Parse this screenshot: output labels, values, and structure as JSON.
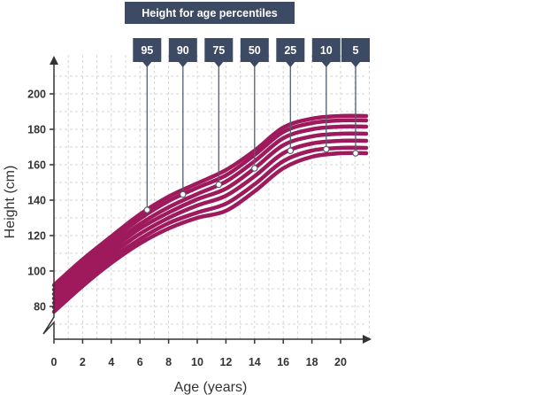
{
  "chart_data": {
    "type": "line",
    "title": "Height for age percentiles",
    "xlabel": "Age (years)",
    "ylabel": "Height (cm)",
    "xlim": [
      0,
      22
    ],
    "ylim": [
      70,
      215
    ],
    "x_ticks": [
      0,
      2,
      4,
      6,
      8,
      10,
      12,
      14,
      16,
      18,
      20
    ],
    "y_ticks": [
      80,
      100,
      120,
      140,
      160,
      180,
      200
    ],
    "grid": true,
    "y_axis_break": true,
    "x": [
      0,
      2,
      4,
      6,
      8,
      10,
      12,
      14,
      16,
      18,
      20,
      22
    ],
    "series": [
      {
        "name": "95",
        "label_age": 6.5,
        "values": [
          92,
          106.5,
          119.5,
          132,
          142,
          149.5,
          157,
          168,
          181,
          186,
          187.5,
          187.5
        ]
      },
      {
        "name": "90",
        "label_age": 9,
        "values": [
          89.5,
          104,
          117,
          129.5,
          139.5,
          147,
          154,
          165.5,
          178.5,
          183.5,
          185,
          185
        ]
      },
      {
        "name": "75",
        "label_age": 11.5,
        "values": [
          87,
          101.5,
          114.5,
          126.5,
          136,
          143.5,
          150.5,
          162,
          175,
          180,
          181.5,
          181.5
        ]
      },
      {
        "name": "50",
        "label_age": 14,
        "values": [
          84.5,
          99,
          112,
          124,
          133,
          140.5,
          146.5,
          158,
          171,
          176,
          177.5,
          177.5
        ]
      },
      {
        "name": "25",
        "label_age": 16.5,
        "values": [
          82,
          96.5,
          109.5,
          121,
          130,
          137,
          142.5,
          153.5,
          166.5,
          172,
          173.5,
          173.5
        ]
      },
      {
        "name": "10",
        "label_age": 19,
        "values": [
          79.5,
          94,
          107,
          118,
          127,
          133,
          138,
          149,
          162,
          168,
          169.5,
          169.5
        ]
      },
      {
        "name": "5",
        "label_age": 21.5,
        "values": [
          77,
          91.5,
          104.5,
          115.5,
          124,
          130,
          134,
          145,
          158,
          164.5,
          166.5,
          166.5
        ]
      }
    ],
    "colors": {
      "curves": "#9e1a5c",
      "labels": "#3d4a63"
    }
  }
}
